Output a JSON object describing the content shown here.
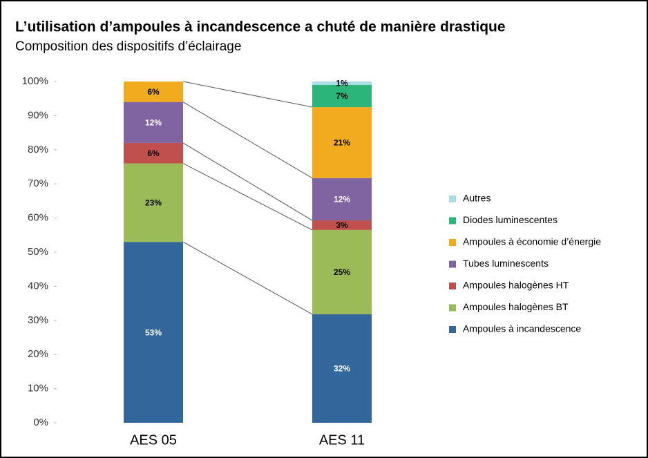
{
  "chart_data": {
    "type": "stacked_bar",
    "title": "L’utilisation d’ampoules à incandescence a chuté de manière drastique",
    "subtitle": "Composition des dispositifs d’éclairage",
    "categories": [
      "AES 05",
      "AES 11"
    ],
    "ylim": [
      0,
      100
    ],
    "yticks": [
      {
        "value": 0,
        "label": "0%"
      },
      {
        "value": 10,
        "label": "10%"
      },
      {
        "value": 20,
        "label": "20%"
      },
      {
        "value": 30,
        "label": "30%"
      },
      {
        "value": 40,
        "label": "40%"
      },
      {
        "value": 50,
        "label": "50%"
      },
      {
        "value": 60,
        "label": "60%"
      },
      {
        "value": 70,
        "label": "70%"
      },
      {
        "value": 80,
        "label": "80%"
      },
      {
        "value": 90,
        "label": "90%"
      },
      {
        "value": 100,
        "label": "100%"
      }
    ],
    "connectors": true,
    "series": [
      {
        "name": "Ampoules à incandescence",
        "color": "#33679c",
        "label_color": "#ffffff",
        "values": [
          53,
          31.8
        ],
        "value_labels": [
          "53%",
          "32%"
        ]
      },
      {
        "name": "Ampoules halogènes BT",
        "color": "#9bbb59",
        "label_color": "#000000",
        "values": [
          23,
          24.7
        ],
        "value_labels": [
          "23%",
          "25%"
        ]
      },
      {
        "name": "Ampoules halogènes HT",
        "color": "#c0504d",
        "label_color": "#000000",
        "values": [
          6,
          2.8
        ],
        "value_labels": [
          "6%",
          "3%"
        ]
      },
      {
        "name": "Tubes luminescents",
        "color": "#8064a2",
        "label_color": "#ffffff",
        "values": [
          12,
          12.4
        ],
        "value_labels": [
          "12%",
          "12%"
        ]
      },
      {
        "name": "Ampoules à économie d’énergie",
        "color": "#f2ab1f",
        "label_color": "#000000",
        "values": [
          6,
          20.8
        ],
        "value_labels": [
          "6%",
          "21%"
        ]
      },
      {
        "name": "Diodes luminescentes",
        "color": "#2bb57a",
        "label_color": "#000000",
        "values": [
          null,
          6.5
        ],
        "value_labels": [
          null,
          "7%"
        ]
      },
      {
        "name": "Autres",
        "color": "#a8dde6",
        "label_color": "#000000",
        "values": [
          null,
          1
        ],
        "value_labels": [
          null,
          "1%"
        ]
      }
    ]
  }
}
